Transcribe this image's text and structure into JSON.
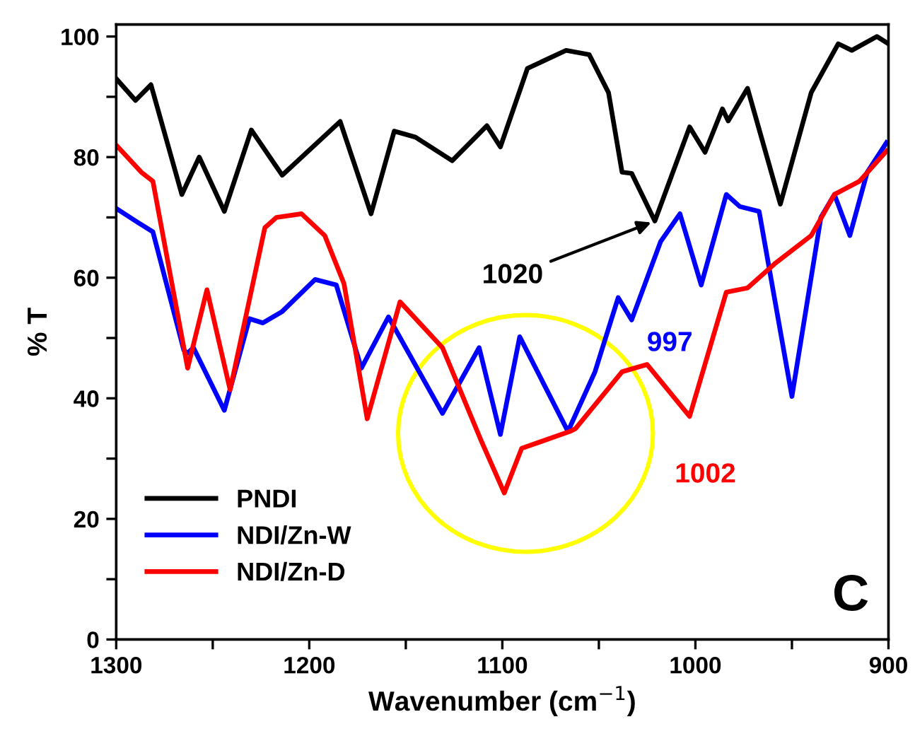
{
  "chart_data": {
    "type": "line",
    "xlabel": "Wavenumber (cm$^{−1}$)",
    "ylabel": "% T",
    "xlim": [
      1300,
      900
    ],
    "xticks": [
      1300,
      {
        "value": 1250,
        "label": null
      },
      1200,
      {
        "value": 1150,
        "label": null
      },
      1100,
      {
        "value": 1050,
        "label": null
      },
      1000,
      {
        "value": 950,
        "label": null
      },
      900
    ],
    "ylim": [
      0,
      102
    ],
    "yticks": [
      0,
      {
        "value": 10,
        "label": null
      },
      20,
      {
        "value": 30,
        "label": null
      },
      40,
      {
        "value": 50,
        "label": null
      },
      60,
      {
        "value": 70,
        "label": null
      },
      80,
      {
        "value": 90,
        "label": null
      },
      100
    ],
    "grid": false,
    "legend": "bottom left",
    "marker": "none",
    "line_style": "solid",
    "series": [
      {
        "name": "PNDI",
        "color": "#000000",
        "x": [
          1300,
          1290,
          1282,
          1266,
          1257,
          1244,
          1230,
          1214,
          1184,
          1168,
          1156,
          1145,
          1126,
          1108,
          1101,
          1087,
          1067,
          1055,
          1045,
          1038,
          1033,
          1021,
          1003,
          995,
          986,
          983,
          973,
          956,
          940,
          926,
          919,
          906,
          900
        ],
        "values": [
          93,
          89.4,
          92,
          73.8,
          80,
          71,
          84.5,
          77,
          85.9,
          70.6,
          84.3,
          83.3,
          79.4,
          85.2,
          81.7,
          94.7,
          97.7,
          97,
          90.7,
          77.5,
          77.3,
          69.4,
          85,
          80.8,
          88,
          86,
          91.4,
          72.2,
          90.7,
          98.8,
          97.7,
          100,
          98.8
        ]
      },
      {
        "name": "NDI/Zn-W",
        "color": "#0000ff",
        "x": [
          1300,
          1289,
          1281,
          1265,
          1263,
          1260,
          1244,
          1231,
          1224,
          1214,
          1197,
          1186,
          1173,
          1159,
          1131,
          1112,
          1101,
          1091,
          1066,
          1052,
          1040,
          1033,
          1018,
          1008,
          997,
          984,
          977,
          967,
          950,
          935,
          928,
          920,
          911,
          901
        ],
        "values": [
          71.5,
          69.2,
          67.6,
          48,
          47.5,
          48.4,
          38,
          53.2,
          52.5,
          54.4,
          59.7,
          58.8,
          45,
          53.5,
          37.5,
          48.4,
          34,
          50.2,
          34.5,
          44.4,
          56.7,
          53,
          66,
          70.6,
          58.8,
          73.8,
          71.8,
          71,
          40.3,
          70,
          73.8,
          67,
          77.5,
          82.4
        ]
      },
      {
        "name": "NDI/Zn-D",
        "color": "#ff0000",
        "x": [
          1300,
          1287,
          1281,
          1263,
          1253,
          1241,
          1223,
          1217,
          1204,
          1192,
          1182,
          1170,
          1153,
          1131,
          1111,
          1099,
          1090,
          1065,
          1062,
          1038,
          1025,
          1003,
          984,
          973,
          959,
          940,
          928,
          915,
          901
        ],
        "values": [
          82,
          77.5,
          76,
          45,
          58,
          41.4,
          68.3,
          70,
          70.6,
          67,
          59,
          36.6,
          56,
          48.4,
          33,
          24.3,
          31.7,
          34.5,
          35,
          44.4,
          45.6,
          37,
          57.6,
          58.3,
          62.3,
          67,
          73.8,
          76,
          81
        ]
      }
    ],
    "annotations": [
      {
        "text": "1020",
        "x": 1021,
        "y": 69.4
      },
      {
        "text": "997",
        "x": 997,
        "y": 58.8
      },
      {
        "text": "1002",
        "x": 1003,
        "y": 37
      },
      "C"
    ]
  }
}
